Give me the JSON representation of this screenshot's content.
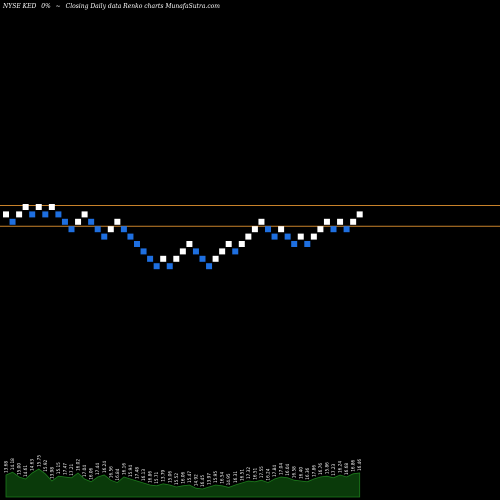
{
  "header": {
    "ticker": "NYSE KED",
    "change": "0%",
    "arrow": "~",
    "description": "Closing Daily data Renko charts MunafaSutra.com"
  },
  "colors": {
    "background": "#000000",
    "up_brick": "#ffffff",
    "down_brick": "#1e6fe0",
    "resistance_line": "#c8822a",
    "volume_fill": "#0a3a0a",
    "volume_stroke": "#1c7a1c",
    "volume_label": "#ffffff"
  },
  "chart_data": {
    "type": "renko",
    "source": "Closing Daily data",
    "bricks": [
      {
        "dir": "up",
        "level": 16.0
      },
      {
        "dir": "down",
        "level": 15.5
      },
      {
        "dir": "up",
        "level": 16.0
      },
      {
        "dir": "up",
        "level": 16.5
      },
      {
        "dir": "down",
        "level": 16.0
      },
      {
        "dir": "up",
        "level": 16.5
      },
      {
        "dir": "down",
        "level": 16.0
      },
      {
        "dir": "up",
        "level": 16.5
      },
      {
        "dir": "down",
        "level": 16.0
      },
      {
        "dir": "down",
        "level": 15.5
      },
      {
        "dir": "down",
        "level": 15.0
      },
      {
        "dir": "up",
        "level": 15.5
      },
      {
        "dir": "up",
        "level": 16.0
      },
      {
        "dir": "down",
        "level": 15.5
      },
      {
        "dir": "down",
        "level": 15.0
      },
      {
        "dir": "down",
        "level": 14.5
      },
      {
        "dir": "up",
        "level": 15.0
      },
      {
        "dir": "up",
        "level": 15.5
      },
      {
        "dir": "down",
        "level": 15.0
      },
      {
        "dir": "down",
        "level": 14.5
      },
      {
        "dir": "down",
        "level": 14.0
      },
      {
        "dir": "down",
        "level": 13.5
      },
      {
        "dir": "down",
        "level": 13.0
      },
      {
        "dir": "down",
        "level": 12.5
      },
      {
        "dir": "up",
        "level": 13.0
      },
      {
        "dir": "down",
        "level": 12.5
      },
      {
        "dir": "up",
        "level": 13.0
      },
      {
        "dir": "up",
        "level": 13.5
      },
      {
        "dir": "up",
        "level": 14.0
      },
      {
        "dir": "down",
        "level": 13.5
      },
      {
        "dir": "down",
        "level": 13.0
      },
      {
        "dir": "down",
        "level": 12.5
      },
      {
        "dir": "up",
        "level": 13.0
      },
      {
        "dir": "up",
        "level": 13.5
      },
      {
        "dir": "up",
        "level": 14.0
      },
      {
        "dir": "down",
        "level": 13.5
      },
      {
        "dir": "up",
        "level": 14.0
      },
      {
        "dir": "up",
        "level": 14.5
      },
      {
        "dir": "up",
        "level": 15.0
      },
      {
        "dir": "up",
        "level": 15.5
      },
      {
        "dir": "down",
        "level": 15.0
      },
      {
        "dir": "down",
        "level": 14.5
      },
      {
        "dir": "up",
        "level": 15.0
      },
      {
        "dir": "down",
        "level": 14.5
      },
      {
        "dir": "down",
        "level": 14.0
      },
      {
        "dir": "up",
        "level": 14.5
      },
      {
        "dir": "down",
        "level": 14.0
      },
      {
        "dir": "up",
        "level": 14.5
      },
      {
        "dir": "up",
        "level": 15.0
      },
      {
        "dir": "up",
        "level": 15.5
      },
      {
        "dir": "down",
        "level": 15.0
      },
      {
        "dir": "up",
        "level": 15.5
      },
      {
        "dir": "down",
        "level": 15.0
      },
      {
        "dir": "up",
        "level": 15.5
      },
      {
        "dir": "up",
        "level": 16.0
      }
    ],
    "resistance_lines": [
      16.6,
      15.2
    ],
    "volume_labels": [
      "13.68",
      "14.18",
      "15.00",
      "14.61",
      "14.63",
      "15.75",
      "15.92",
      "13.98",
      "15.15",
      "17.47",
      "17.21",
      "16.02",
      "17.04",
      "16.06",
      "17.44",
      "16.24",
      "16.56",
      "16.84",
      "16.16",
      "15.94",
      "17.48",
      "16.13",
      "16.86",
      "15.71",
      "13.79",
      "15.06",
      "15.52",
      "16.06",
      "15.47",
      "14.92",
      "16.45",
      "13.97",
      "15.95",
      "16.54",
      "14.95",
      "16.31",
      "16.51",
      "17.32",
      "16.51",
      "17.55",
      "16.24",
      "17.84",
      "17.04",
      "16.04",
      "16.58",
      "16.40",
      "16.36",
      "17.86",
      "16.76",
      "15.86",
      "17.23",
      "16.24",
      "16.68",
      "16.86",
      "16.46"
    ],
    "volume_values": [
      0.55,
      0.62,
      0.5,
      0.45,
      0.6,
      0.7,
      0.58,
      0.4,
      0.52,
      0.5,
      0.48,
      0.6,
      0.45,
      0.38,
      0.5,
      0.55,
      0.42,
      0.36,
      0.5,
      0.45,
      0.4,
      0.35,
      0.3,
      0.28,
      0.33,
      0.3,
      0.25,
      0.28,
      0.3,
      0.22,
      0.2,
      0.25,
      0.3,
      0.28,
      0.24,
      0.3,
      0.35,
      0.4,
      0.38,
      0.42,
      0.36,
      0.45,
      0.5,
      0.48,
      0.42,
      0.4,
      0.38,
      0.45,
      0.5,
      0.52,
      0.48,
      0.55,
      0.5,
      0.58,
      0.6
    ]
  }
}
